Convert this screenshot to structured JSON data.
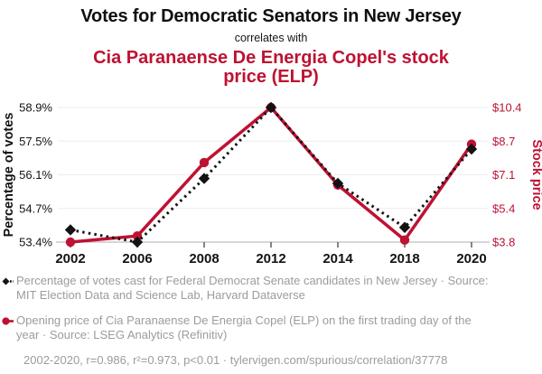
{
  "header": {
    "title": "Votes for Democratic Senators in New Jersey",
    "connector": "correlates with",
    "subtitle": "Cia Paranaense De Energia Copel's stock price (ELP)"
  },
  "colors": {
    "accent_red": "#be1233",
    "text_black": "#131313",
    "legend_gray": "#9c9c9c",
    "gridline": "#ededed",
    "axis_line": "#bdbdbd",
    "tick_mark": "#5a5a5a"
  },
  "chart_data": {
    "type": "line",
    "title": "Votes for Democratic Senators in New Jersey correlates with Cia Paranaense De Energia Copel's stock price (ELP)",
    "categories": [
      "2002",
      "2006",
      "2008",
      "2012",
      "2014",
      "2018",
      "2020"
    ],
    "series": [
      {
        "name": "Percentage of votes cast for Federal Democrat Senate candidates in New Jersey",
        "axis": "left",
        "color": "#131313",
        "style": "dotted",
        "marker": "diamond",
        "values": [
          53.9,
          53.4,
          56.0,
          58.9,
          55.8,
          54.0,
          57.2
        ]
      },
      {
        "name": "Opening price of Cia Paranaense De Energia Copel (ELP) on the first trading day of the year",
        "axis": "right",
        "color": "#be1233",
        "style": "solid",
        "marker": "circle",
        "values": [
          3.8,
          4.1,
          7.7,
          10.4,
          6.6,
          3.9,
          8.6
        ]
      }
    ],
    "left_axis": {
      "label": "Percentage of votes",
      "ticks": [
        "58.9%",
        "57.5%",
        "56.1%",
        "54.7%",
        "53.4%"
      ],
      "min": 53.4,
      "max": 58.9
    },
    "right_axis": {
      "label": "Stock price",
      "ticks": [
        "$10.4",
        "$8.7",
        "$7.1",
        "$5.4",
        "$3.8"
      ],
      "min": 3.8,
      "max": 10.4
    },
    "grid": true,
    "legend_position": "bottom"
  },
  "legend": {
    "entries": [
      {
        "marker": "black-diamond-dotted-line",
        "text": "Percentage of votes cast for Federal Democrat Senate candidates in New Jersey · Source: MIT Election Data and Science Lab, Harvard Dataverse"
      },
      {
        "marker": "red-circle-solid-line",
        "text": "Opening price of Cia Paranaense De Energia Copel (ELP) on the first trading day of the year · Source: LSEG Analytics (Refinitiv)"
      }
    ],
    "footer": "2002-2020, r=0.986, r²=0.973, p<0.01 · tylervigen.com/spurious/correlation/37778"
  }
}
